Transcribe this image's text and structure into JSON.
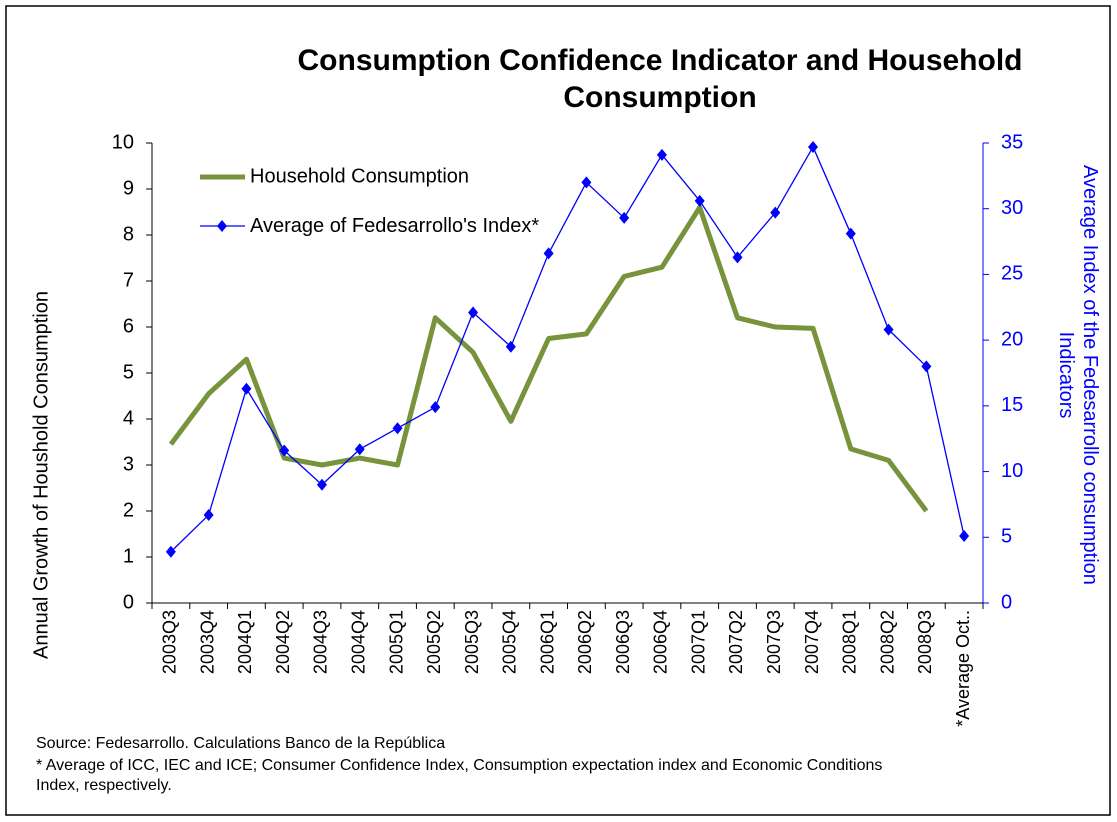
{
  "chart_data": {
    "type": "line",
    "title": "Consumption Confidence Indicator and Household Consumption",
    "y_label": "Annual Growth of Houshold Consumption",
    "y2_label": "Average Index of the Fedesarrollo consumption Indicators",
    "categories": [
      "2003Q3",
      "2003Q4",
      "2004Q1",
      "2004Q2",
      "2004Q3",
      "2004Q4",
      "2005Q1",
      "2005Q2",
      "2005Q3",
      "2005Q4",
      "2006Q1",
      "2006Q2",
      "2006Q3",
      "2006Q4",
      "2007Q1",
      "2007Q2",
      "2007Q3",
      "2007Q4",
      "2008Q1",
      "2008Q2",
      "2008Q3",
      "*Average Oct.."
    ],
    "series": [
      {
        "name": "Household Consumption",
        "color": "#77933c",
        "values": [
          3.45,
          4.55,
          5.3,
          3.15,
          3.0,
          3.15,
          3.0,
          6.2,
          5.45,
          3.95,
          5.75,
          5.85,
          7.1,
          7.3,
          8.6,
          6.2,
          6.0,
          5.97,
          3.35,
          3.1,
          2.0,
          null
        ]
      },
      {
        "name": "Average of Fedesarrollo's Index*",
        "color": "#0000ff",
        "axis": "y2",
        "values": [
          3.9,
          6.7,
          16.3,
          11.6,
          9.0,
          11.7,
          13.3,
          14.9,
          22.1,
          19.5,
          26.6,
          32.0,
          29.3,
          34.1,
          30.6,
          26.3,
          29.7,
          34.7,
          28.1,
          20.8,
          18.0,
          5.1
        ]
      }
    ],
    "ylim": [
      0,
      10
    ],
    "yticks": [
      0,
      1,
      2,
      3,
      4,
      5,
      6,
      7,
      8,
      9,
      10
    ],
    "y2lim": [
      0,
      35
    ],
    "y2ticks": [
      0,
      5,
      10,
      15,
      20,
      25,
      30,
      35
    ],
    "notes": [
      "Source: Fedesarrollo. Calculations Banco de la República",
      "* Average of ICC, IEC and ICE; Consumer Confidence Index, Consumption expectation index and Economic Conditions Index, respectively."
    ]
  }
}
